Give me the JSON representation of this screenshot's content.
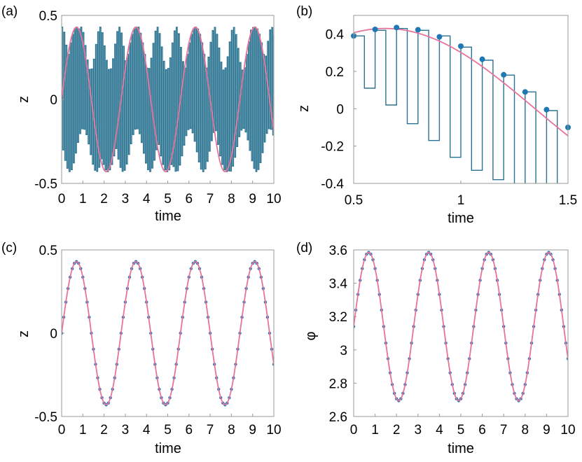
{
  "colors": {
    "fast": "#2a7391",
    "smooth": "#e8739b",
    "dots": "#1f77b4",
    "frame": "#999999"
  },
  "panels": [
    {
      "label": "(a)",
      "ylabel": "z",
      "xlabel": "time",
      "xticks": [
        "0",
        "1",
        "2",
        "3",
        "4",
        "5",
        "6",
        "7",
        "8",
        "9",
        "10"
      ],
      "yticks": [
        "0.5",
        "0",
        "-0.5"
      ]
    },
    {
      "label": "(b)",
      "ylabel": "z",
      "xlabel": "time",
      "xticks": [
        "0.5",
        "1",
        "1.5"
      ],
      "yticks": [
        "0.4",
        "0.2",
        "0",
        "-0.2",
        "-0.4"
      ]
    },
    {
      "label": "(c)",
      "ylabel": "z",
      "xlabel": "time",
      "xticks": [
        "0",
        "1",
        "2",
        "3",
        "4",
        "5",
        "6",
        "7",
        "8",
        "9",
        "10"
      ],
      "yticks": [
        "0.5",
        "0",
        "-0.5"
      ]
    },
    {
      "label": "(d)",
      "ylabel": "φ",
      "xlabel": "time",
      "xticks": [
        "0",
        "1",
        "2",
        "3",
        "4",
        "5",
        "6",
        "7",
        "8",
        "9",
        "10"
      ],
      "yticks": [
        "3.6",
        "3.4",
        "3.2",
        "3",
        "2.8",
        "2.6"
      ]
    }
  ],
  "chart_data": [
    {
      "type": "line",
      "panel": "(a)",
      "xlim": [
        0,
        10
      ],
      "ylim": [
        -0.5,
        0.5
      ],
      "xlabel": "time",
      "ylabel": "z",
      "grid": false,
      "series": [
        {
          "kind": "envelope",
          "amplitude": 0.43,
          "period": 2.8,
          "phase_t0": 0.0,
          "switch_step": 0.1
        },
        {
          "kind": "smooth",
          "amplitude": 0.43,
          "period": 2.8
        }
      ]
    },
    {
      "type": "line",
      "panel": "(b)",
      "xlim": [
        0.5,
        1.5
      ],
      "ylim": [
        -0.4,
        0.5
      ],
      "xlabel": "time",
      "ylabel": "z",
      "grid": false,
      "series": [
        {
          "kind": "square-wave",
          "x_high": [
            0.5,
            0.6,
            0.7,
            0.8,
            0.9,
            1.0,
            1.1,
            1.2,
            1.3,
            1.4
          ],
          "high": [
            0.39,
            0.42,
            0.43,
            0.42,
            0.39,
            0.33,
            0.26,
            0.18,
            0.09,
            -0.01
          ],
          "low": [
            0.11,
            0.02,
            -0.08,
            -0.17,
            -0.26,
            -0.33,
            -0.38,
            -0.43,
            -0.47,
            -0.5
          ]
        },
        {
          "kind": "dots",
          "x": [
            0.5,
            0.6,
            0.7,
            0.8,
            0.9,
            1.0,
            1.1,
            1.2,
            1.3,
            1.4,
            1.5
          ],
          "y": [
            0.39,
            0.425,
            0.435,
            0.423,
            0.385,
            0.335,
            0.265,
            0.182,
            0.09,
            -0.005,
            -0.1
          ]
        },
        {
          "kind": "smooth",
          "amplitude": 0.43,
          "period": 2.8
        }
      ]
    },
    {
      "type": "line",
      "panel": "(c)",
      "xlim": [
        0,
        10
      ],
      "ylim": [
        -0.5,
        0.5
      ],
      "xlabel": "time",
      "ylabel": "z",
      "grid": false,
      "series": [
        {
          "kind": "dots",
          "amplitude": 0.43,
          "period": 2.8,
          "step": 0.1
        },
        {
          "kind": "smooth",
          "amplitude": 0.43,
          "period": 2.8
        }
      ]
    },
    {
      "type": "line",
      "panel": "(d)",
      "xlim": [
        0,
        10
      ],
      "ylim": [
        2.6,
        3.6
      ],
      "xlabel": "time",
      "ylabel": "φ",
      "grid": false,
      "series": [
        {
          "kind": "dots",
          "offset": 3.14,
          "amplitude": 0.445,
          "period": 2.8,
          "step": 0.1
        },
        {
          "kind": "smooth",
          "offset": 3.14,
          "amplitude": 0.445,
          "period": 2.8
        }
      ]
    }
  ]
}
